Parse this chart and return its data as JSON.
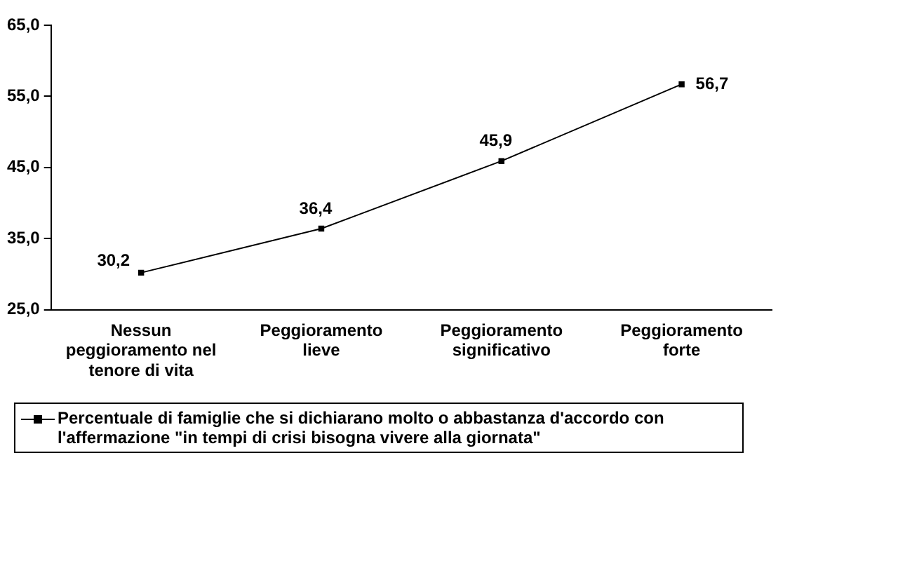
{
  "chart_data": {
    "type": "line",
    "categories": [
      "Nessun peggioramento nel tenore di vita",
      "Peggioramento lieve",
      "Peggioramento significativo",
      "Peggioramento forte"
    ],
    "series": [
      {
        "name": "Percentuale di famiglie che si dichiarano molto o abbastanza d'accordo con l'affermazione \"in tempi di crisi bisogna vivere alla giornata\"",
        "color": "#000000",
        "values": [
          30.2,
          36.4,
          45.9,
          56.7
        ],
        "value_labels": [
          "30,2",
          "36,4",
          "45,9",
          "56,7"
        ]
      }
    ],
    "ylim": [
      25,
      65
    ],
    "yticks": [
      {
        "value": 25,
        "label": "25,0"
      },
      {
        "value": 35,
        "label": "35,0"
      },
      {
        "value": 45,
        "label": "45,0"
      },
      {
        "value": 55,
        "label": "55,0"
      },
      {
        "value": 65,
        "label": "65,0"
      }
    ],
    "grid": false,
    "legend": "bottom",
    "marker": "square",
    "line_style": "solid"
  }
}
